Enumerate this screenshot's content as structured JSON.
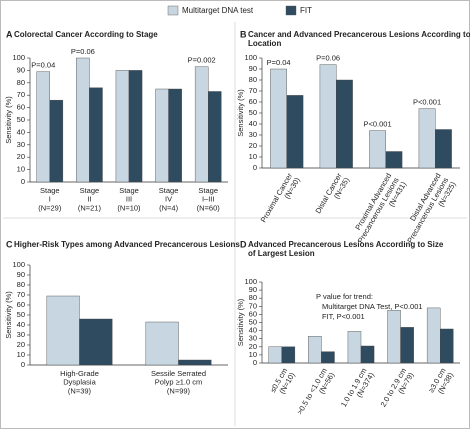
{
  "legend": [
    {
      "name": "Multitarget DNA test",
      "color": "#c7d6e0"
    },
    {
      "name": "FIT",
      "color": "#2f4b60"
    }
  ],
  "chart_data": [
    {
      "type": "bar",
      "label": "A",
      "title": "Colorectal Cancer According to Stage",
      "y_label": "Sensitivity (%)",
      "categories": [
        "Stage\nI\n(N=29)",
        "Stage\nII\n(N=21)",
        "Stage\nIII\n(N=10)",
        "Stage\nIV\n(N=4)",
        "Stage\nI–III\n(N=60)"
      ],
      "series": [
        {
          "values": [
            89,
            100,
            90,
            75,
            93
          ]
        },
        {
          "values": [
            66,
            76,
            90,
            75,
            73
          ]
        }
      ],
      "p_values": [
        "P=0.04",
        "P=0.06",
        null,
        null,
        "P=0.002"
      ],
      "ylim": [
        0,
        100
      ],
      "yticks": [
        0,
        10,
        20,
        30,
        40,
        50,
        60,
        70,
        80,
        90,
        100
      ]
    },
    {
      "type": "bar",
      "label": "B",
      "title": "Cancer and Advanced Precancerous Lesions According to Location",
      "y_label": "Sensitivity (%)",
      "categories": [
        "Proximal Cancer\n(N=30)",
        "Distal Cancer\n(N=35)",
        "Proximal Advanced\nPrecancerous Lesions\n(N=431)",
        "Distal Advanced\nPrecancerous Lesions\n(N=325)"
      ],
      "series": [
        {
          "values": [
            90,
            94,
            34,
            54
          ]
        },
        {
          "values": [
            66,
            80,
            15,
            35
          ]
        }
      ],
      "p_values": [
        "P=0.04",
        "P=0.06",
        "P<0.001",
        "P<0.001"
      ],
      "ylim": [
        0,
        100
      ],
      "yticks": [
        0,
        10,
        20,
        30,
        40,
        50,
        60,
        70,
        80,
        90,
        100
      ]
    },
    {
      "type": "bar",
      "label": "C",
      "title": "Higher-Risk Types among Advanced Precancerous Lesions",
      "y_label": "Sensitivity (%)",
      "categories": [
        "High-Grade\nDysplasia\n(N=39)",
        "Sessile Serrated\nPolyp ≥1.0 cm\n(N=99)"
      ],
      "series": [
        {
          "values": [
            69,
            43
          ]
        },
        {
          "values": [
            46,
            5
          ]
        }
      ],
      "ylim": [
        0,
        100
      ],
      "yticks": [
        0,
        10,
        20,
        30,
        40,
        50,
        60,
        70,
        80,
        90,
        100
      ]
    },
    {
      "type": "bar",
      "label": "D",
      "title": "Advanced Precancerous Lesions According to Size of Largest Lesion",
      "y_label": "Sensitivity (%)",
      "categories": [
        "≤0.5 cm\n(N=10)",
        ">0.5 to <1.0 cm\n(N=56)",
        "1.0 to 1.9 cm\n(N=374)",
        "2.0 to 2.9 cm\n(N=79)",
        "≥3.0 cm\n(N=38)"
      ],
      "series": [
        {
          "values": [
            20,
            33,
            39,
            65,
            68
          ]
        },
        {
          "values": [
            20,
            14,
            21,
            44,
            42
          ]
        }
      ],
      "annotation_lines": [
        "P value for trend:",
        "Multitarget DNA Test, P<0.001",
        "FIT, P<0.001"
      ],
      "ylim": [
        0,
        100
      ],
      "yticks": [
        0,
        10,
        20,
        30,
        40,
        50,
        60,
        70,
        80,
        90,
        100
      ]
    }
  ]
}
